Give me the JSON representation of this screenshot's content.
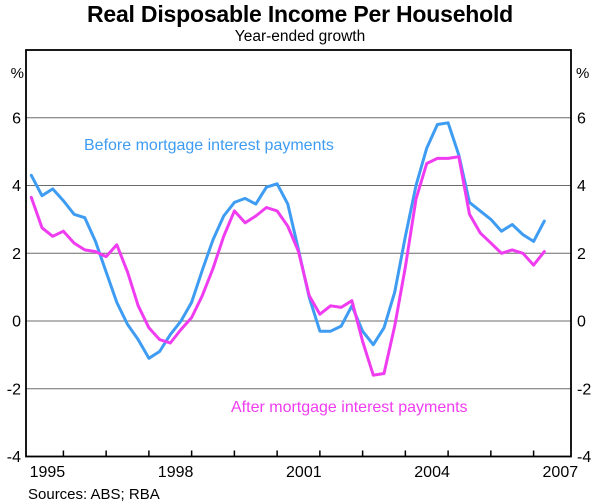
{
  "title": "Real Disposable Income Per Household",
  "subtitle": "Year-ended growth",
  "footer": {
    "sources": "Sources: ABS; RBA"
  },
  "series_labels": {
    "before": "Before mortgage interest payments",
    "after": "After mortgage interest payments"
  },
  "colors": {
    "before": "#3E9CF3",
    "after": "#F03CF0",
    "grid": "#6b6b6b",
    "frame": "#000000",
    "text": "#000000"
  },
  "axes": {
    "y_unit_left": "%",
    "y_unit_right": "%",
    "y_tick_labels": [
      6,
      4,
      2,
      0,
      -2,
      -4
    ],
    "y_gridlines": [
      6,
      4,
      2,
      0,
      -2
    ],
    "x_tick_years": [
      1995.5,
      1996.5,
      1997.5,
      1998.5,
      1999.5,
      2000.5,
      2001.5,
      2002.5,
      2003.5,
      2004.5,
      2005.5,
      2006.5
    ],
    "x_labels": [
      "1995",
      "1998",
      "2001",
      "2004",
      "2007"
    ]
  },
  "chart_data": {
    "type": "line",
    "title": "Real Disposable Income Per Household",
    "subtitle": "Year-ended growth",
    "ylabel": "%",
    "ylim": [
      -4,
      8
    ],
    "xlim": [
      1994.625,
      2007.375
    ],
    "x_start": 1994.75,
    "x_step": 0.25,
    "grid": true,
    "legend_position": "inline-labels",
    "quarters": [
      "1994Q3",
      "1994Q4",
      "1995Q1",
      "1995Q2",
      "1995Q3",
      "1995Q4",
      "1996Q1",
      "1996Q2",
      "1996Q3",
      "1996Q4",
      "1997Q1",
      "1997Q2",
      "1997Q3",
      "1997Q4",
      "1998Q1",
      "1998Q2",
      "1998Q3",
      "1998Q4",
      "1999Q1",
      "1999Q2",
      "1999Q3",
      "1999Q4",
      "2000Q1",
      "2000Q2",
      "2000Q3",
      "2000Q4",
      "2001Q1",
      "2001Q2",
      "2001Q3",
      "2001Q4",
      "2002Q1",
      "2002Q2",
      "2002Q3",
      "2002Q4",
      "2003Q1",
      "2003Q2",
      "2003Q3",
      "2003Q4",
      "2004Q1",
      "2004Q2",
      "2004Q3",
      "2004Q4",
      "2005Q1",
      "2005Q2",
      "2005Q3",
      "2005Q4",
      "2006Q1",
      "2006Q2",
      "2006Q3"
    ],
    "series": [
      {
        "name": "Before mortgage interest payments",
        "color": "#3E9CF3",
        "values": [
          4.3,
          3.7,
          3.9,
          3.55,
          3.15,
          3.05,
          2.35,
          1.45,
          0.55,
          -0.1,
          -0.55,
          -1.1,
          -0.9,
          -0.4,
          0.0,
          0.55,
          1.5,
          2.4,
          3.1,
          3.5,
          3.62,
          3.45,
          3.95,
          4.05,
          3.45,
          2.1,
          0.7,
          -0.3,
          -0.3,
          -0.15,
          0.45,
          -0.3,
          -0.7,
          -0.2,
          0.85,
          2.5,
          4.0,
          5.1,
          5.8,
          5.85,
          4.9,
          3.5,
          3.25,
          3.0,
          2.65,
          2.85,
          2.55,
          2.35,
          2.95
        ]
      },
      {
        "name": "After mortgage interest payments",
        "color": "#F03CF0",
        "values": [
          3.65,
          2.75,
          2.5,
          2.65,
          2.3,
          2.1,
          2.05,
          1.9,
          2.25,
          1.45,
          0.45,
          -0.2,
          -0.55,
          -0.65,
          -0.25,
          0.1,
          0.75,
          1.55,
          2.5,
          3.25,
          2.9,
          3.1,
          3.35,
          3.25,
          2.8,
          2.05,
          0.75,
          0.2,
          0.45,
          0.4,
          0.6,
          -0.6,
          -1.6,
          -1.55,
          -0.15,
          1.6,
          3.6,
          4.65,
          4.8,
          4.8,
          4.85,
          3.15,
          2.6,
          2.3,
          2.0,
          2.1,
          2.0,
          1.65,
          2.05
        ]
      }
    ]
  }
}
